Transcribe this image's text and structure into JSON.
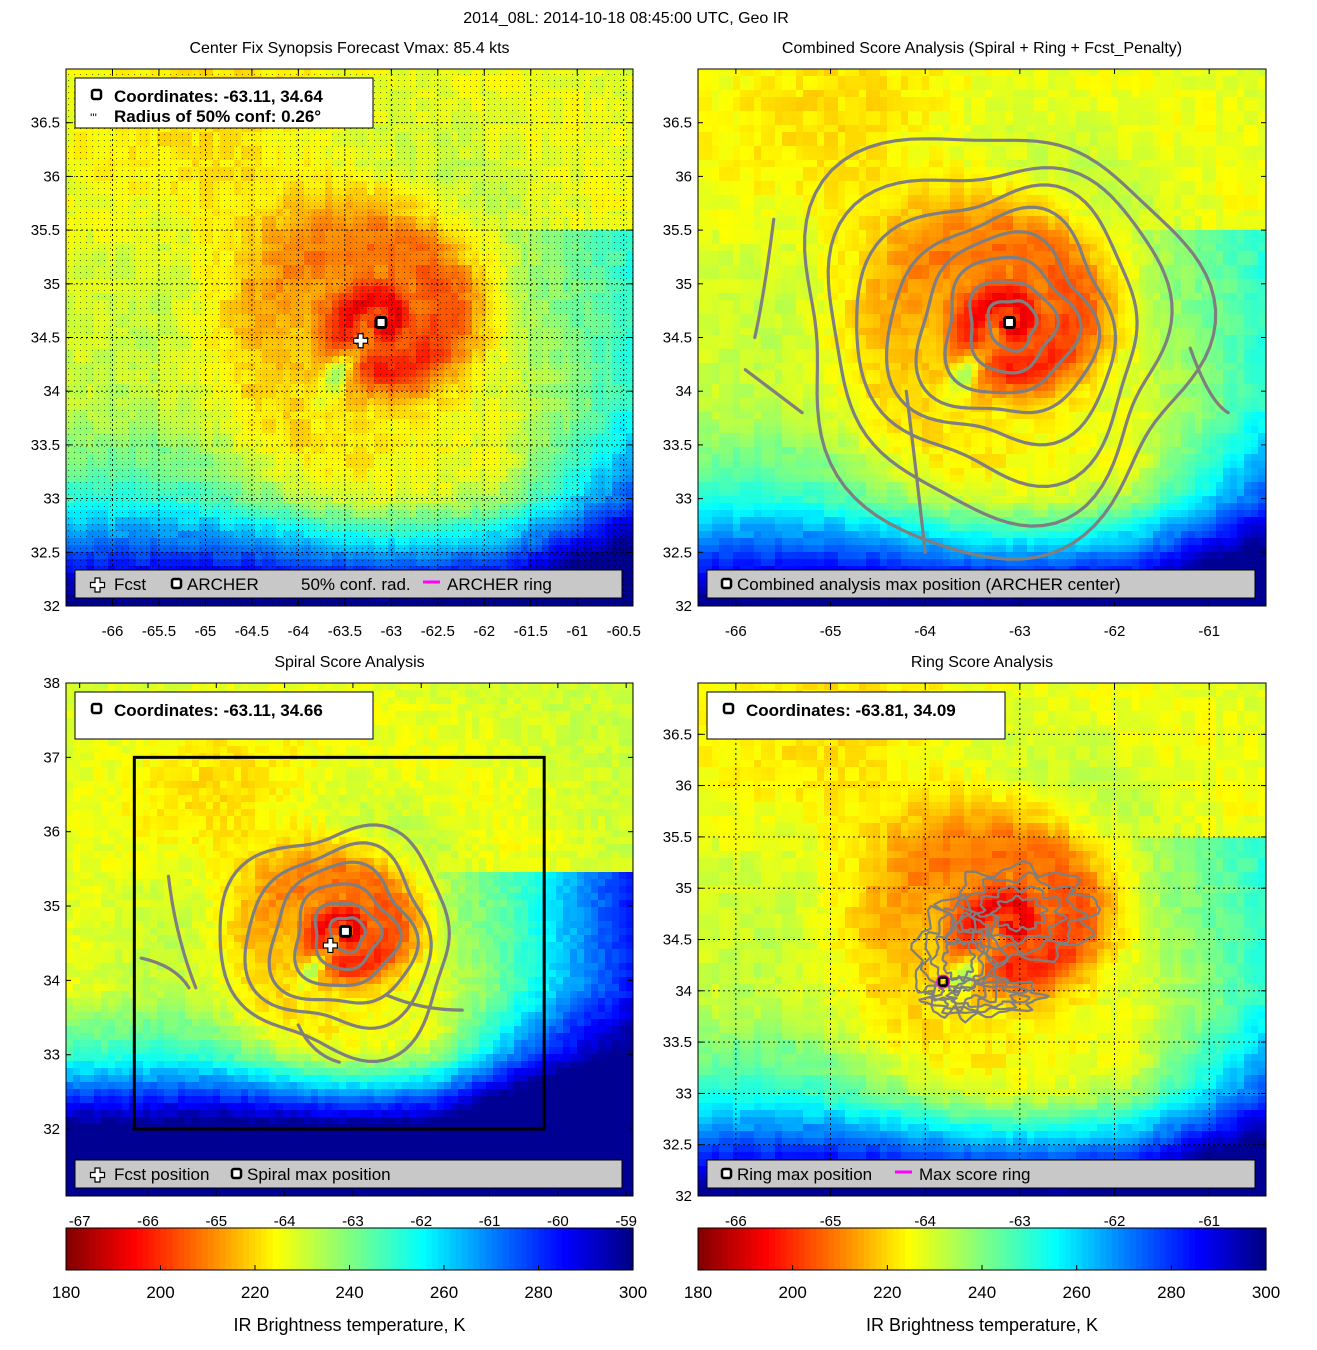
{
  "figure": {
    "title": "2014_08L: 2014-10-18 08:45:00 UTC, Geo IR",
    "storm_center": {
      "lon": -63.11,
      "lat": 34.64
    }
  },
  "colors": {
    "fcst_marker": "#ffffff",
    "archer_marker": "#000000",
    "conf_radius": "#33cc33",
    "ring": "#ff00ff",
    "contour": "#7f7f7f",
    "legend_bg": "#c8c8c8",
    "colormap": [
      "#800000",
      "#ff0000",
      "#ff8000",
      "#ffff00",
      "#80ff80",
      "#00ffff",
      "#0080ff",
      "#0000ff",
      "#000080"
    ]
  },
  "chart_data": [
    {
      "id": "synopsis",
      "type": "heatmap",
      "title": "Center Fix Synopsis     Forecast Vmax: 85.4 kts",
      "xlim": [
        -66.5,
        -60.4
      ],
      "ylim": [
        32,
        37
      ],
      "xticks": [
        -66,
        -65.5,
        -65,
        -64.5,
        -64,
        -63.5,
        -63,
        -62.5,
        -62,
        -61.5,
        -61,
        -60.5
      ],
      "yticks": [
        32,
        32.5,
        33,
        33.5,
        34,
        34.5,
        35,
        35.5,
        36,
        36.5
      ],
      "grid": true,
      "dotted_overlay": true,
      "info_lines": [
        "Coordinates: -63.11, 34.64",
        "Radius of 50% conf: 0.26°"
      ],
      "legend": [
        {
          "marker": "plus",
          "label": "Fcst"
        },
        {
          "marker": "square",
          "label": "ARCHER"
        },
        {
          "marker": "dots",
          "label": "50% conf. rad."
        },
        {
          "marker": "line",
          "label": "ARCHER ring"
        }
      ],
      "points": [
        {
          "name": "fcst",
          "lon": -63.33,
          "lat": 34.47
        },
        {
          "name": "archer",
          "lon": -63.11,
          "lat": 34.64
        }
      ]
    },
    {
      "id": "combined",
      "type": "heatmap",
      "title": "Combined Score Analysis (Spiral + Ring + Fcst_Penalty)",
      "xlim": [
        -66.4,
        -60.4
      ],
      "ylim": [
        32,
        37
      ],
      "xticks": [
        -66,
        -65,
        -64,
        -63,
        -62,
        -61
      ],
      "yticks": [
        32,
        32.5,
        33,
        33.5,
        34,
        34.5,
        35,
        35.5,
        36,
        36.5
      ],
      "grid": false,
      "contours": "combined",
      "legend": [
        {
          "marker": "square",
          "label": "Combined analysis max position (ARCHER center)"
        }
      ],
      "points": [
        {
          "name": "archer",
          "lon": -63.11,
          "lat": 34.64
        }
      ]
    },
    {
      "id": "spiral",
      "type": "heatmap",
      "title": "Spiral Score Analysis",
      "xlim": [
        -67.2,
        -58.9
      ],
      "ylim": [
        31.1,
        38
      ],
      "xticks": [
        -67,
        -66,
        -65,
        -64,
        -63,
        -62,
        -61,
        -60,
        -59
      ],
      "yticks": [
        32,
        33,
        34,
        35,
        36,
        37,
        38
      ],
      "grid": false,
      "contours": "spiral",
      "search_box": {
        "lon": [
          -66.2,
          -60.2
        ],
        "lat": [
          32,
          37
        ]
      },
      "info_lines": [
        "Coordinates: -63.11, 34.66"
      ],
      "legend": [
        {
          "marker": "plus",
          "label": "Fcst position"
        },
        {
          "marker": "square",
          "label": "Spiral max position"
        }
      ],
      "points": [
        {
          "name": "fcst",
          "lon": -63.33,
          "lat": 34.47
        },
        {
          "name": "archer",
          "lon": -63.11,
          "lat": 34.66
        }
      ]
    },
    {
      "id": "ring",
      "type": "heatmap",
      "title": "Ring Score Analysis",
      "xlim": [
        -66.4,
        -60.4
      ],
      "ylim": [
        32,
        37
      ],
      "xticks": [
        -66,
        -65,
        -64,
        -63,
        -62,
        -61
      ],
      "yticks": [
        32,
        32.5,
        33,
        33.5,
        34,
        34.5,
        35,
        35.5,
        36,
        36.5
      ],
      "grid": true,
      "contours": "ring",
      "info_lines": [
        "Coordinates: -63.81, 34.09"
      ],
      "legend": [
        {
          "marker": "square",
          "label": "Ring max position"
        },
        {
          "marker": "line",
          "label": "Max score ring"
        }
      ],
      "points": [
        {
          "name": "ring",
          "lon": -63.81,
          "lat": 34.09
        }
      ]
    }
  ],
  "colorbars": [
    {
      "id": "left",
      "range": [
        180,
        300
      ],
      "ticks": [
        180,
        200,
        220,
        240,
        260,
        280,
        300
      ],
      "label": "IR Brightness temperature, K"
    },
    {
      "id": "right",
      "range": [
        180,
        300
      ],
      "ticks": [
        180,
        200,
        220,
        240,
        260,
        280,
        300
      ],
      "label": "IR Brightness temperature, K"
    }
  ]
}
